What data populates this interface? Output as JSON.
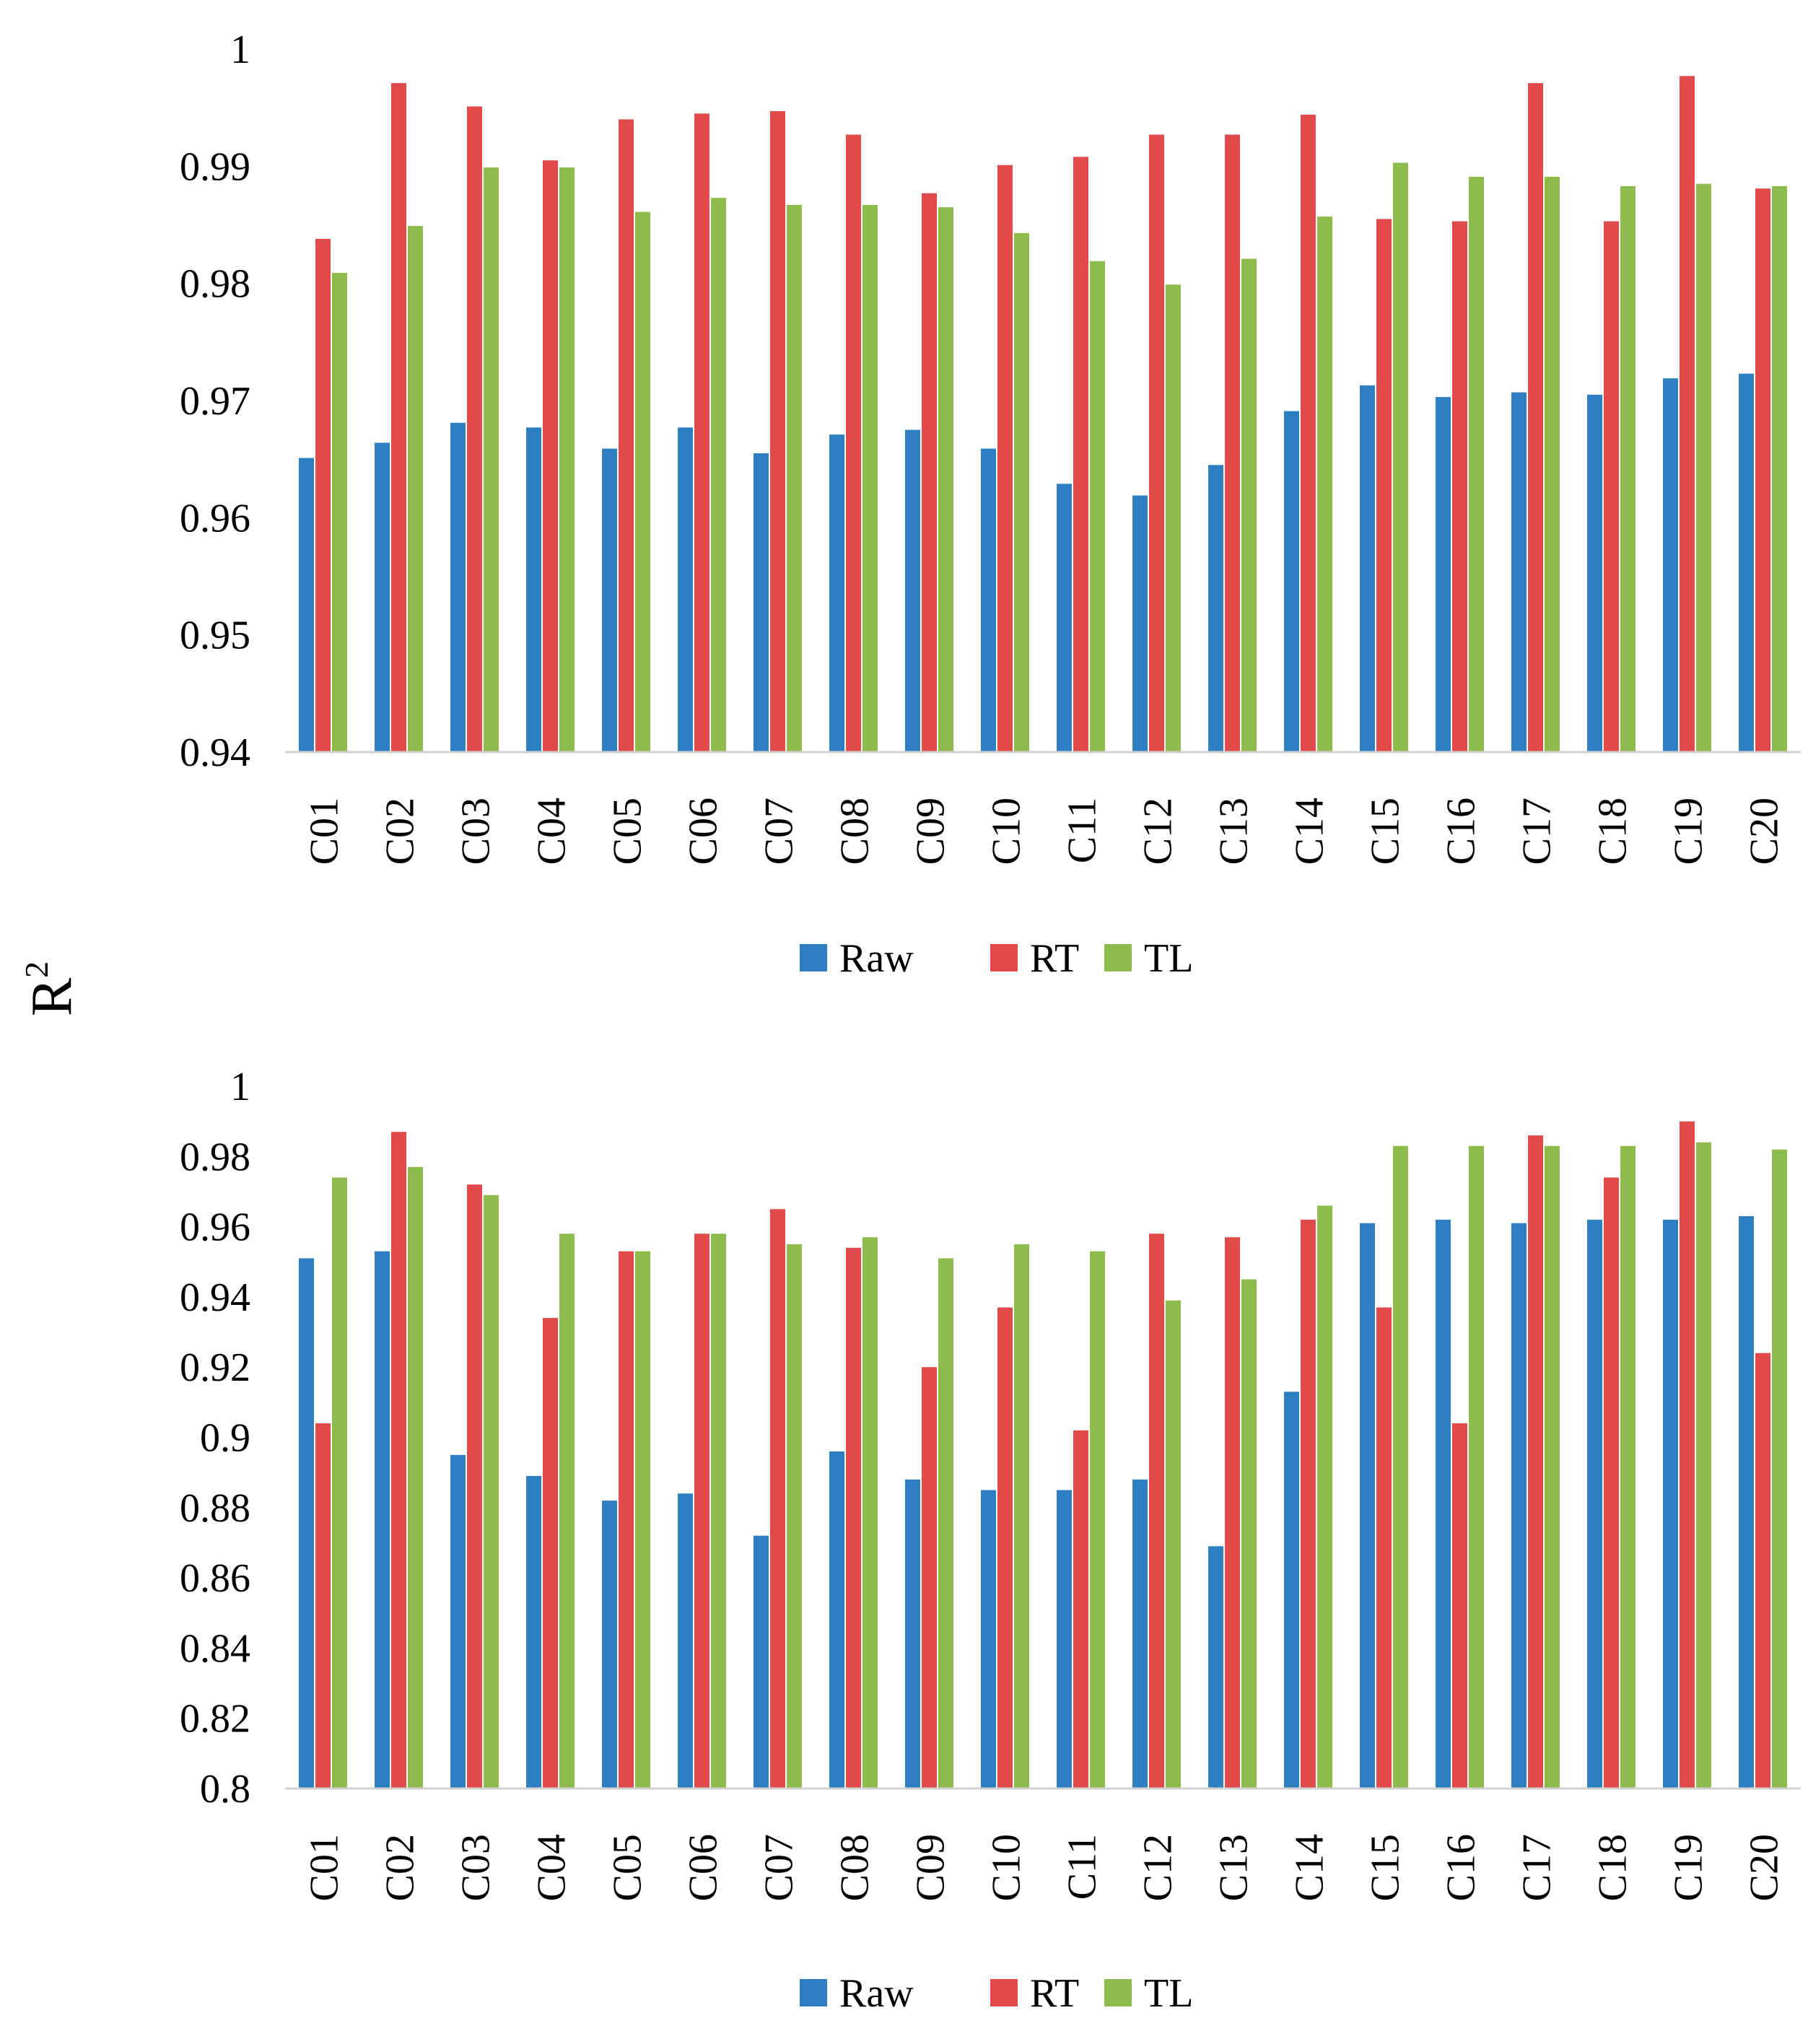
{
  "ylabel": "R",
  "ylabel_superscript": "2",
  "chart_data": [
    {
      "type": "bar",
      "title": "",
      "xlabel": "",
      "ylim": [
        0.94,
        1
      ],
      "yticks": [
        0.94,
        0.95,
        0.96,
        0.97,
        0.98,
        0.99,
        1
      ],
      "ytick_labels": [
        "0.94",
        "0.95",
        "0.96",
        "0.97",
        "0.98",
        "0.99",
        "1"
      ],
      "categories": [
        "C01",
        "C02",
        "C03",
        "C04",
        "C05",
        "C06",
        "C07",
        "C08",
        "C09",
        "C10",
        "C11",
        "C12",
        "C13",
        "C14",
        "C15",
        "C16",
        "C17",
        "C18",
        "C19",
        "C20"
      ],
      "series": [
        {
          "name": "Raw",
          "color": "#2e7fc1",
          "values": [
            0.9651,
            0.9664,
            0.9681,
            0.9677,
            0.9659,
            0.9677,
            0.9655,
            0.9671,
            0.9675,
            0.9659,
            0.9629,
            0.9619,
            0.9645,
            0.9691,
            0.9713,
            0.9703,
            0.9707,
            0.9705,
            0.9719,
            0.9723
          ]
        },
        {
          "name": "RT",
          "color": "#e04a4a",
          "values": [
            0.9838,
            0.9971,
            0.9951,
            0.9905,
            0.994,
            0.9945,
            0.9947,
            0.9927,
            0.9877,
            0.9901,
            0.9908,
            0.9927,
            0.9927,
            0.9944,
            0.9855,
            0.9853,
            0.9971,
            0.9853,
            0.9977,
            0.9881
          ]
        },
        {
          "name": "TL",
          "color": "#8dbc4c",
          "values": [
            0.9809,
            0.9849,
            0.9899,
            0.9899,
            0.9861,
            0.9873,
            0.9867,
            0.9867,
            0.9865,
            0.9843,
            0.9819,
            0.9799,
            0.9821,
            0.9857,
            0.9903,
            0.9891,
            0.9891,
            0.9883,
            0.9885,
            0.9883
          ]
        }
      ],
      "legend": [
        "Raw",
        "RT",
        "TL"
      ],
      "legend_position": "bottom"
    },
    {
      "type": "bar",
      "title": "",
      "xlabel": "",
      "ylim": [
        0.8,
        1
      ],
      "yticks": [
        0.8,
        0.82,
        0.84,
        0.86,
        0.88,
        0.9,
        0.92,
        0.94,
        0.96,
        0.98,
        1
      ],
      "ytick_labels": [
        "0.8",
        "0.82",
        "0.84",
        "0.86",
        "0.88",
        "0.9",
        "0.92",
        "0.94",
        "0.96",
        "0.98",
        "1"
      ],
      "categories": [
        "C01",
        "C02",
        "C03",
        "C04",
        "C05",
        "C06",
        "C07",
        "C08",
        "C09",
        "C10",
        "C11",
        "C12",
        "C13",
        "C14",
        "C15",
        "C16",
        "C17",
        "C18",
        "C19",
        "C20"
      ],
      "series": [
        {
          "name": "Raw",
          "color": "#2e7fc1",
          "values": [
            0.951,
            0.953,
            0.895,
            0.889,
            0.882,
            0.884,
            0.872,
            0.896,
            0.888,
            0.885,
            0.885,
            0.888,
            0.869,
            0.913,
            0.961,
            0.962,
            0.961,
            0.962,
            0.962,
            0.963
          ]
        },
        {
          "name": "RT",
          "color": "#e04a4a",
          "values": [
            0.904,
            0.987,
            0.972,
            0.934,
            0.953,
            0.958,
            0.965,
            0.954,
            0.92,
            0.937,
            0.902,
            0.958,
            0.957,
            0.962,
            0.937,
            0.904,
            0.986,
            0.974,
            0.99,
            0.924
          ]
        },
        {
          "name": "TL",
          "color": "#8dbc4c",
          "values": [
            0.974,
            0.977,
            0.969,
            0.958,
            0.953,
            0.958,
            0.955,
            0.957,
            0.951,
            0.955,
            0.953,
            0.939,
            0.945,
            0.966,
            0.983,
            0.983,
            0.983,
            0.983,
            0.984,
            0.982
          ]
        }
      ],
      "legend": [
        "Raw",
        "RT",
        "TL"
      ],
      "legend_position": "bottom"
    }
  ]
}
